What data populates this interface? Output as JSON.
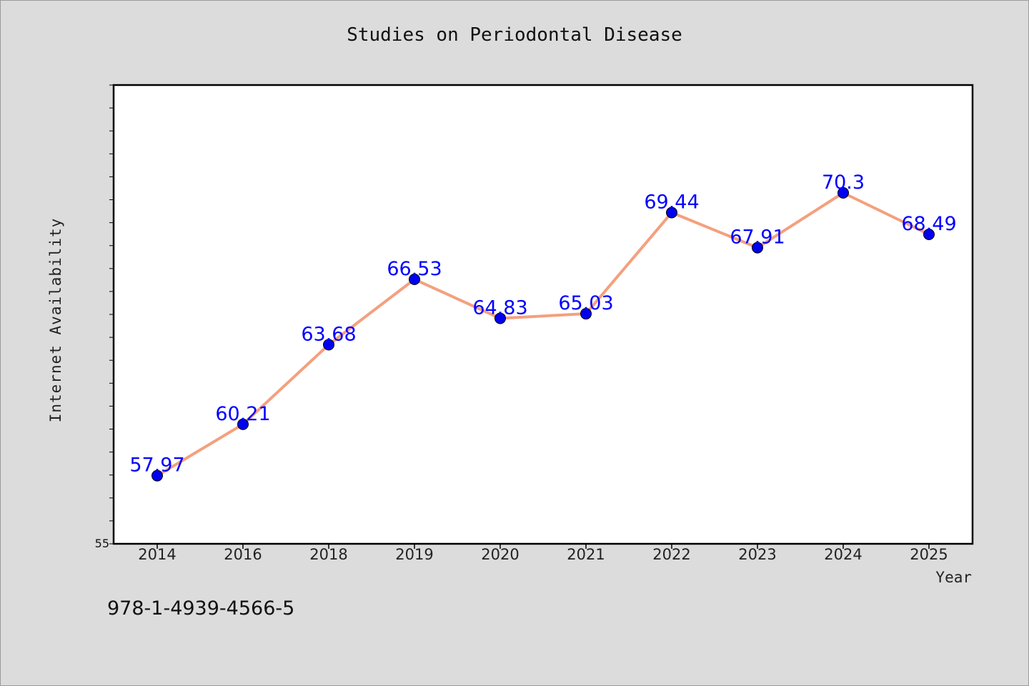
{
  "chart_data": {
    "type": "line",
    "title": "Studies on Periodontal Disease",
    "xlabel": "Year",
    "ylabel": "Internet Availability",
    "categories": [
      "2014",
      "2016",
      "2018",
      "2019",
      "2020",
      "2021",
      "2022",
      "2023",
      "2024",
      "2025"
    ],
    "values": [
      57.97,
      60.21,
      63.68,
      66.53,
      64.83,
      65.03,
      69.44,
      67.91,
      70.3,
      68.49
    ],
    "data_labels": [
      "57.97",
      "60.21",
      "63.68",
      "66.53",
      "64.83",
      "65.03",
      "69.44",
      "67.91",
      "70.3",
      "68.49"
    ],
    "ylim": [
      55,
      75
    ],
    "y_tick_labels": [
      "55"
    ],
    "grid": false,
    "legend": "none",
    "colors": {
      "line": "#f4a07e",
      "marker": "#0000ee",
      "label": "#0000ff",
      "background": "#dcdcdc",
      "plot_area": "#ffffff"
    }
  },
  "footer": {
    "isbn": "978-1-4939-4566-5"
  }
}
